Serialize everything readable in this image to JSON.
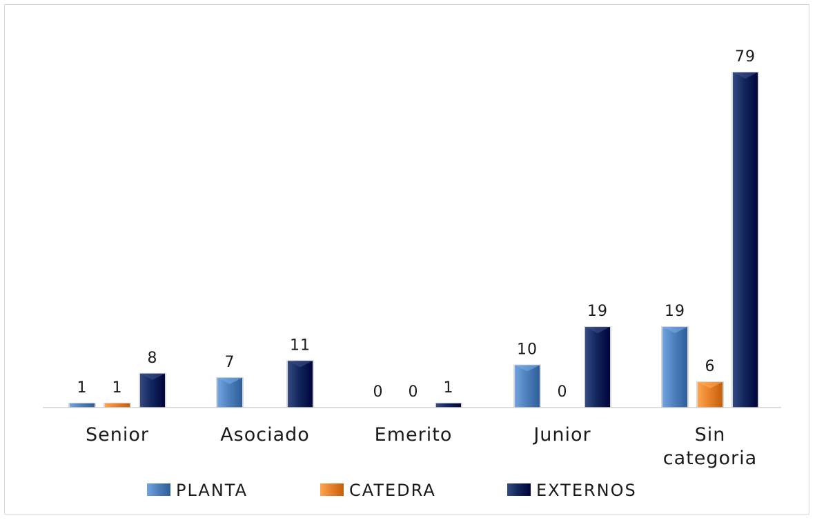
{
  "chart_data": {
    "type": "bar",
    "categories": [
      "Senior",
      "Asociado",
      "Emerito",
      "Junior",
      "Sin categoria"
    ],
    "series": [
      {
        "name": "PLANTA",
        "values": [
          1,
          7,
          0,
          10,
          19
        ],
        "color": "#4f81bd"
      },
      {
        "name": "CATEDRA",
        "values": [
          1,
          0,
          0,
          0,
          6
        ],
        "color": "#e8822c"
      },
      {
        "name": "EXTERNOS",
        "values": [
          8,
          11,
          1,
          19,
          79
        ],
        "color": "#12275e"
      }
    ],
    "data_labels": [
      [
        "1",
        "1",
        "8"
      ],
      [
        "7",
        "",
        "11"
      ],
      [
        "0",
        "0",
        "1"
      ],
      [
        "10",
        "0",
        "19"
      ],
      [
        "19",
        "6",
        "79"
      ]
    ],
    "title": "",
    "xlabel": "",
    "ylabel": "",
    "ylim": [
      0,
      79
    ],
    "grid": false,
    "legend": "bottom"
  }
}
